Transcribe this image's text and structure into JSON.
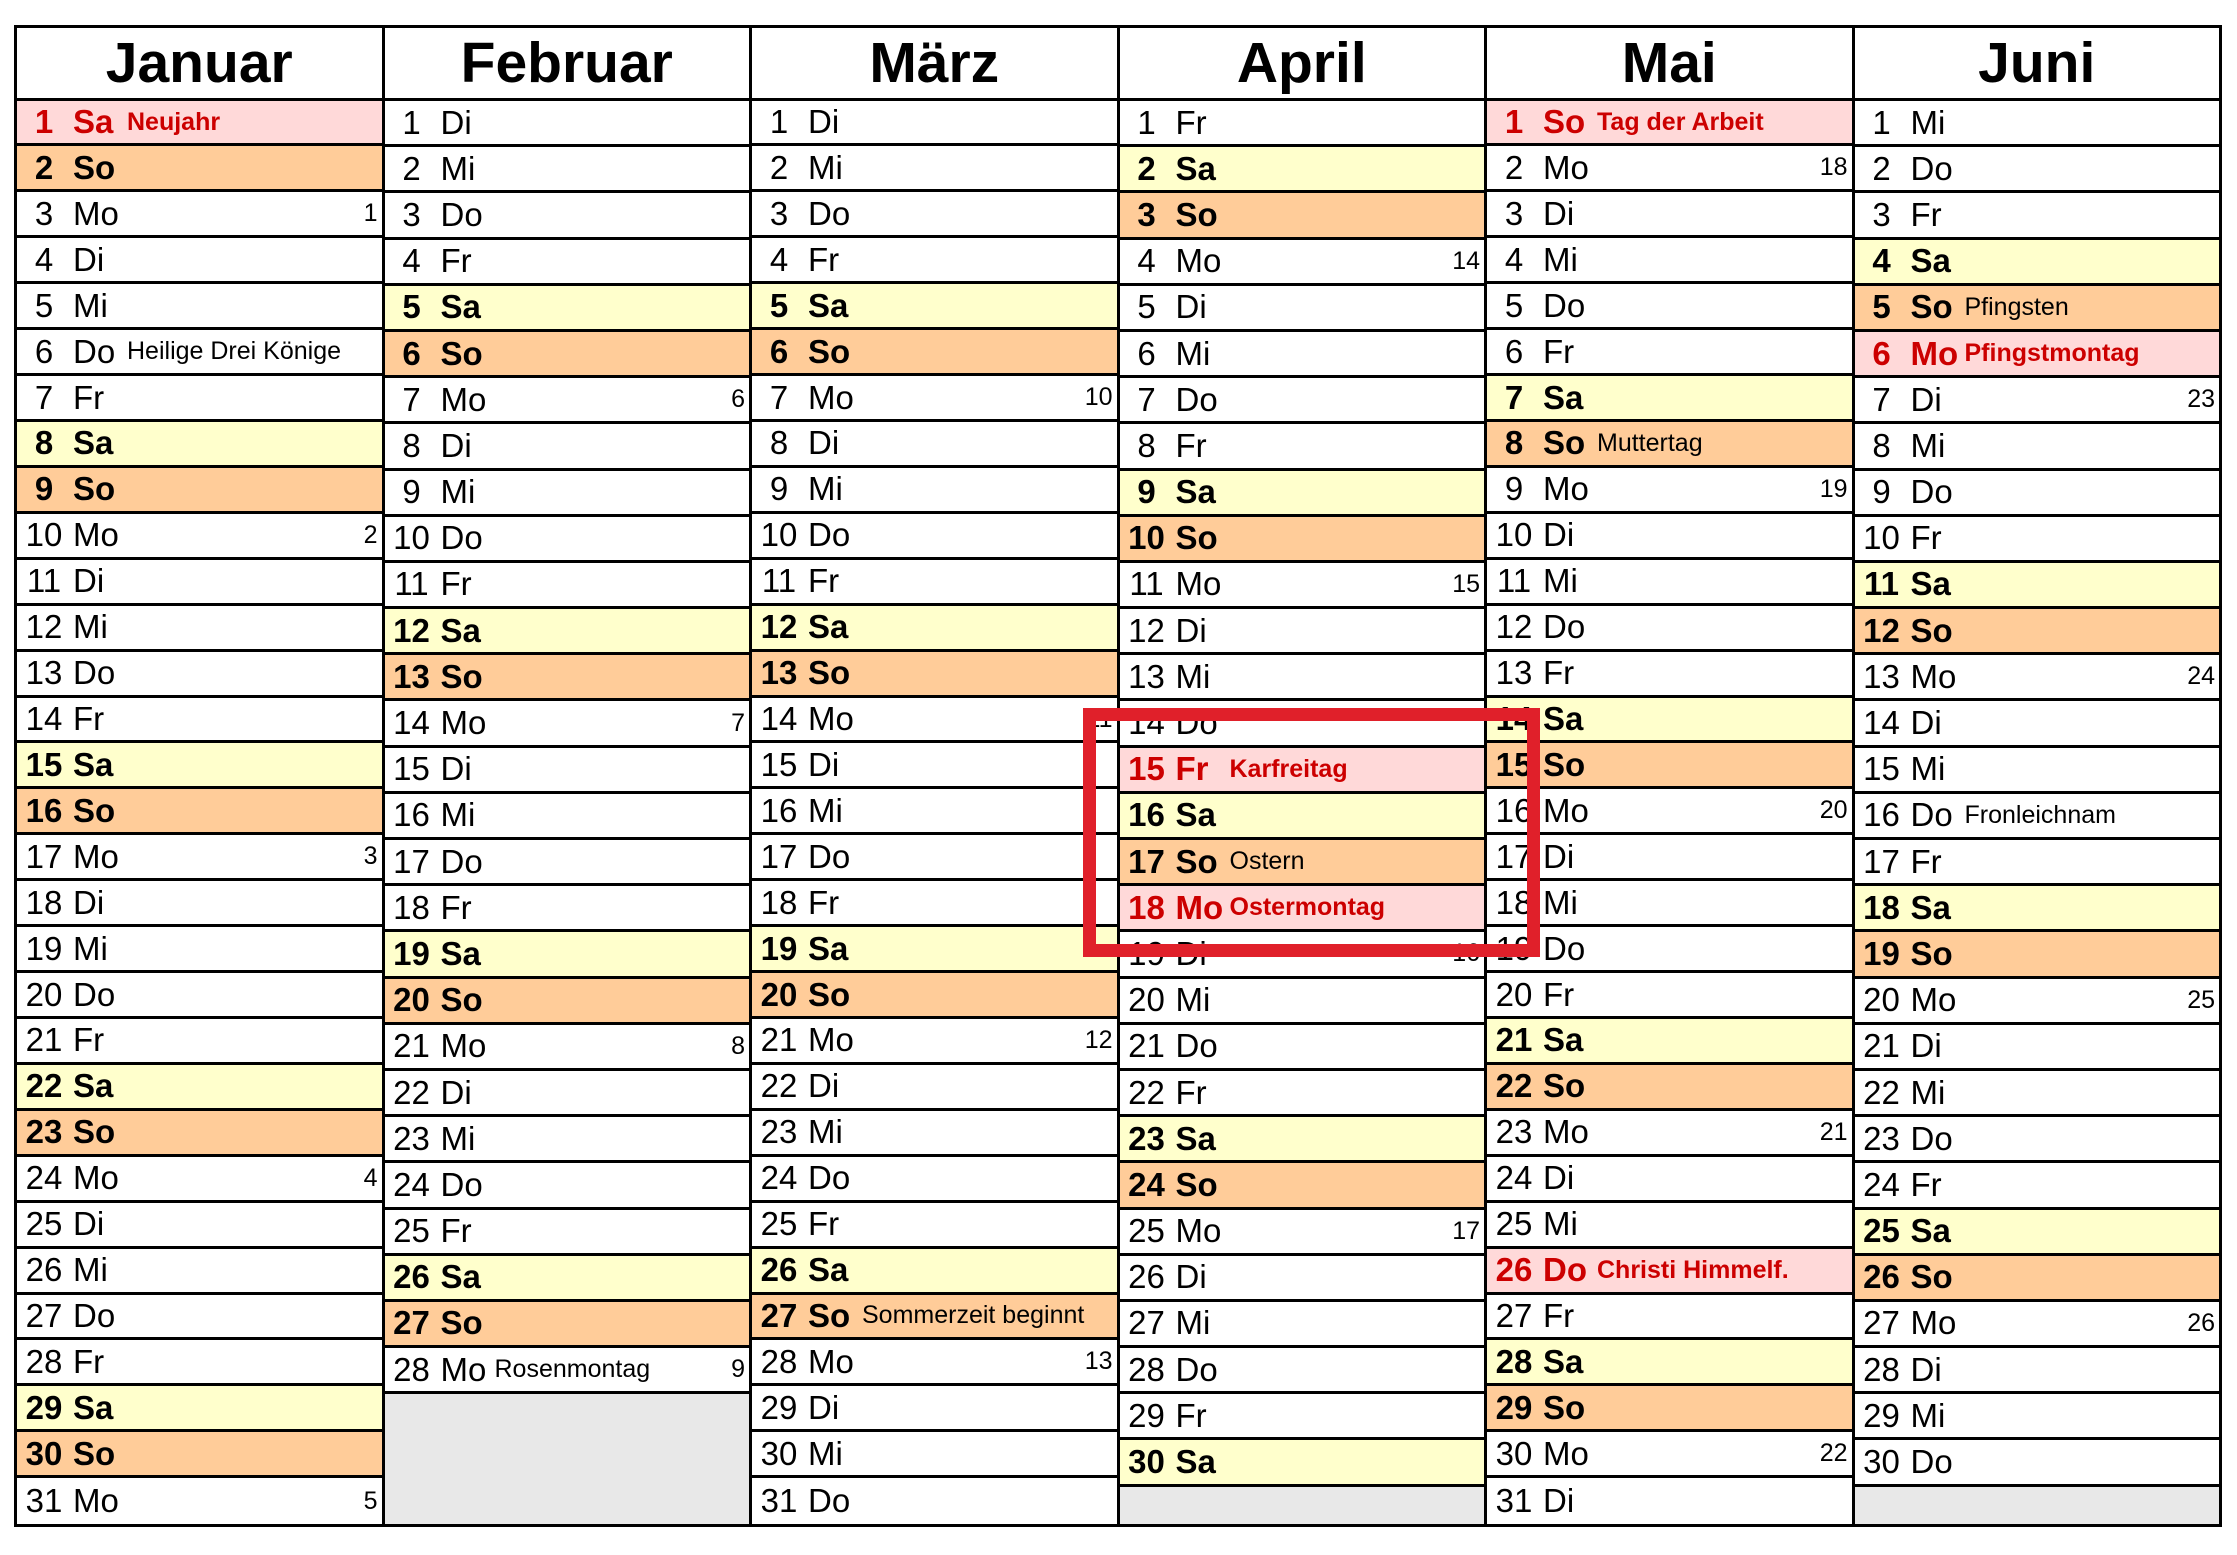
{
  "colors": {
    "saturday": "#ffffcc",
    "sunday": "#ffcc99",
    "holiday": "#ffd9d9",
    "holiday_text": "#cc0000",
    "empty": "#e8e8e8",
    "highlight_box": "#e0202a"
  },
  "months": [
    {
      "name": "Januar",
      "days": [
        [
          "1",
          "Sa",
          "Neujahr",
          "",
          true
        ],
        [
          "2",
          "So",
          "",
          "",
          false
        ],
        [
          "3",
          "Mo",
          "",
          "1",
          false
        ],
        [
          "4",
          "Di",
          "",
          "",
          false
        ],
        [
          "5",
          "Mi",
          "",
          "",
          false
        ],
        [
          "6",
          "Do",
          "Heilige Drei Könige",
          "",
          false
        ],
        [
          "7",
          "Fr",
          "",
          "",
          false
        ],
        [
          "8",
          "Sa",
          "",
          "",
          false
        ],
        [
          "9",
          "So",
          "",
          "",
          false
        ],
        [
          "10",
          "Mo",
          "",
          "2",
          false
        ],
        [
          "11",
          "Di",
          "",
          "",
          false
        ],
        [
          "12",
          "Mi",
          "",
          "",
          false
        ],
        [
          "13",
          "Do",
          "",
          "",
          false
        ],
        [
          "14",
          "Fr",
          "",
          "",
          false
        ],
        [
          "15",
          "Sa",
          "",
          "",
          false
        ],
        [
          "16",
          "So",
          "",
          "",
          false
        ],
        [
          "17",
          "Mo",
          "",
          "3",
          false
        ],
        [
          "18",
          "Di",
          "",
          "",
          false
        ],
        [
          "19",
          "Mi",
          "",
          "",
          false
        ],
        [
          "20",
          "Do",
          "",
          "",
          false
        ],
        [
          "21",
          "Fr",
          "",
          "",
          false
        ],
        [
          "22",
          "Sa",
          "",
          "",
          false
        ],
        [
          "23",
          "So",
          "",
          "",
          false
        ],
        [
          "24",
          "Mo",
          "",
          "4",
          false
        ],
        [
          "25",
          "Di",
          "",
          "",
          false
        ],
        [
          "26",
          "Mi",
          "",
          "",
          false
        ],
        [
          "27",
          "Do",
          "",
          "",
          false
        ],
        [
          "28",
          "Fr",
          "",
          "",
          false
        ],
        [
          "29",
          "Sa",
          "",
          "",
          false
        ],
        [
          "30",
          "So",
          "",
          "",
          false
        ],
        [
          "31",
          "Mo",
          "",
          "5",
          false
        ]
      ]
    },
    {
      "name": "Februar",
      "days": [
        [
          "1",
          "Di",
          "",
          "",
          false
        ],
        [
          "2",
          "Mi",
          "",
          "",
          false
        ],
        [
          "3",
          "Do",
          "",
          "",
          false
        ],
        [
          "4",
          "Fr",
          "",
          "",
          false
        ],
        [
          "5",
          "Sa",
          "",
          "",
          false
        ],
        [
          "6",
          "So",
          "",
          "",
          false
        ],
        [
          "7",
          "Mo",
          "",
          "6",
          false
        ],
        [
          "8",
          "Di",
          "",
          "",
          false
        ],
        [
          "9",
          "Mi",
          "",
          "",
          false
        ],
        [
          "10",
          "Do",
          "",
          "",
          false
        ],
        [
          "11",
          "Fr",
          "",
          "",
          false
        ],
        [
          "12",
          "Sa",
          "",
          "",
          false
        ],
        [
          "13",
          "So",
          "",
          "",
          false
        ],
        [
          "14",
          "Mo",
          "",
          "7",
          false
        ],
        [
          "15",
          "Di",
          "",
          "",
          false
        ],
        [
          "16",
          "Mi",
          "",
          "",
          false
        ],
        [
          "17",
          "Do",
          "",
          "",
          false
        ],
        [
          "18",
          "Fr",
          "",
          "",
          false
        ],
        [
          "19",
          "Sa",
          "",
          "",
          false
        ],
        [
          "20",
          "So",
          "",
          "",
          false
        ],
        [
          "21",
          "Mo",
          "",
          "8",
          false
        ],
        [
          "22",
          "Di",
          "",
          "",
          false
        ],
        [
          "23",
          "Mi",
          "",
          "",
          false
        ],
        [
          "24",
          "Do",
          "",
          "",
          false
        ],
        [
          "25",
          "Fr",
          "",
          "",
          false
        ],
        [
          "26",
          "Sa",
          "",
          "",
          false
        ],
        [
          "27",
          "So",
          "",
          "",
          false
        ],
        [
          "28",
          "Mo",
          "Rosenmontag",
          "9",
          false
        ]
      ]
    },
    {
      "name": "März",
      "days": [
        [
          "1",
          "Di",
          "",
          "",
          false
        ],
        [
          "2",
          "Mi",
          "",
          "",
          false
        ],
        [
          "3",
          "Do",
          "",
          "",
          false
        ],
        [
          "4",
          "Fr",
          "",
          "",
          false
        ],
        [
          "5",
          "Sa",
          "",
          "",
          false
        ],
        [
          "6",
          "So",
          "",
          "",
          false
        ],
        [
          "7",
          "Mo",
          "",
          "10",
          false
        ],
        [
          "8",
          "Di",
          "",
          "",
          false
        ],
        [
          "9",
          "Mi",
          "",
          "",
          false
        ],
        [
          "10",
          "Do",
          "",
          "",
          false
        ],
        [
          "11",
          "Fr",
          "",
          "",
          false
        ],
        [
          "12",
          "Sa",
          "",
          "",
          false
        ],
        [
          "13",
          "So",
          "",
          "",
          false
        ],
        [
          "14",
          "Mo",
          "",
          "11",
          false
        ],
        [
          "15",
          "Di",
          "",
          "",
          false
        ],
        [
          "16",
          "Mi",
          "",
          "",
          false
        ],
        [
          "17",
          "Do",
          "",
          "",
          false
        ],
        [
          "18",
          "Fr",
          "",
          "",
          false
        ],
        [
          "19",
          "Sa",
          "",
          "",
          false
        ],
        [
          "20",
          "So",
          "",
          "",
          false
        ],
        [
          "21",
          "Mo",
          "",
          "12",
          false
        ],
        [
          "22",
          "Di",
          "",
          "",
          false
        ],
        [
          "23",
          "Mi",
          "",
          "",
          false
        ],
        [
          "24",
          "Do",
          "",
          "",
          false
        ],
        [
          "25",
          "Fr",
          "",
          "",
          false
        ],
        [
          "26",
          "Sa",
          "",
          "",
          false
        ],
        [
          "27",
          "So",
          "Sommerzeit beginnt",
          "",
          false
        ],
        [
          "28",
          "Mo",
          "",
          "13",
          false
        ],
        [
          "29",
          "Di",
          "",
          "",
          false
        ],
        [
          "30",
          "Mi",
          "",
          "",
          false
        ],
        [
          "31",
          "Do",
          "",
          "",
          false
        ]
      ]
    },
    {
      "name": "April",
      "days": [
        [
          "1",
          "Fr",
          "",
          "",
          false
        ],
        [
          "2",
          "Sa",
          "",
          "",
          false
        ],
        [
          "3",
          "So",
          "",
          "",
          false
        ],
        [
          "4",
          "Mo",
          "",
          "14",
          false
        ],
        [
          "5",
          "Di",
          "",
          "",
          false
        ],
        [
          "6",
          "Mi",
          "",
          "",
          false
        ],
        [
          "7",
          "Do",
          "",
          "",
          false
        ],
        [
          "8",
          "Fr",
          "",
          "",
          false
        ],
        [
          "9",
          "Sa",
          "",
          "",
          false
        ],
        [
          "10",
          "So",
          "",
          "",
          false
        ],
        [
          "11",
          "Mo",
          "",
          "15",
          false
        ],
        [
          "12",
          "Di",
          "",
          "",
          false
        ],
        [
          "13",
          "Mi",
          "",
          "",
          false
        ],
        [
          "14",
          "Do",
          "",
          "",
          false
        ],
        [
          "15",
          "Fr",
          "Karfreitag",
          "",
          true
        ],
        [
          "16",
          "Sa",
          "",
          "",
          false
        ],
        [
          "17",
          "So",
          "Ostern",
          "",
          false
        ],
        [
          "18",
          "Mo",
          "Ostermontag",
          "",
          true
        ],
        [
          "19",
          "Di",
          "",
          "16",
          false
        ],
        [
          "20",
          "Mi",
          "",
          "",
          false
        ],
        [
          "21",
          "Do",
          "",
          "",
          false
        ],
        [
          "22",
          "Fr",
          "",
          "",
          false
        ],
        [
          "23",
          "Sa",
          "",
          "",
          false
        ],
        [
          "24",
          "So",
          "",
          "",
          false
        ],
        [
          "25",
          "Mo",
          "",
          "17",
          false
        ],
        [
          "26",
          "Di",
          "",
          "",
          false
        ],
        [
          "27",
          "Mi",
          "",
          "",
          false
        ],
        [
          "28",
          "Do",
          "",
          "",
          false
        ],
        [
          "29",
          "Fr",
          "",
          "",
          false
        ],
        [
          "30",
          "Sa",
          "",
          "",
          false
        ]
      ]
    },
    {
      "name": "Mai",
      "days": [
        [
          "1",
          "So",
          "Tag der Arbeit",
          "",
          true
        ],
        [
          "2",
          "Mo",
          "",
          "18",
          false
        ],
        [
          "3",
          "Di",
          "",
          "",
          false
        ],
        [
          "4",
          "Mi",
          "",
          "",
          false
        ],
        [
          "5",
          "Do",
          "",
          "",
          false
        ],
        [
          "6",
          "Fr",
          "",
          "",
          false
        ],
        [
          "7",
          "Sa",
          "",
          "",
          false
        ],
        [
          "8",
          "So",
          "Muttertag",
          "",
          false
        ],
        [
          "9",
          "Mo",
          "",
          "19",
          false
        ],
        [
          "10",
          "Di",
          "",
          "",
          false
        ],
        [
          "11",
          "Mi",
          "",
          "",
          false
        ],
        [
          "12",
          "Do",
          "",
          "",
          false
        ],
        [
          "13",
          "Fr",
          "",
          "",
          false
        ],
        [
          "14",
          "Sa",
          "",
          "",
          false
        ],
        [
          "15",
          "So",
          "",
          "",
          false
        ],
        [
          "16",
          "Mo",
          "",
          "20",
          false
        ],
        [
          "17",
          "Di",
          "",
          "",
          false
        ],
        [
          "18",
          "Mi",
          "",
          "",
          false
        ],
        [
          "19",
          "Do",
          "",
          "",
          false
        ],
        [
          "20",
          "Fr",
          "",
          "",
          false
        ],
        [
          "21",
          "Sa",
          "",
          "",
          false
        ],
        [
          "22",
          "So",
          "",
          "",
          false
        ],
        [
          "23",
          "Mo",
          "",
          "21",
          false
        ],
        [
          "24",
          "Di",
          "",
          "",
          false
        ],
        [
          "25",
          "Mi",
          "",
          "",
          false
        ],
        [
          "26",
          "Do",
          "Christi Himmelf.",
          "",
          true
        ],
        [
          "27",
          "Fr",
          "",
          "",
          false
        ],
        [
          "28",
          "Sa",
          "",
          "",
          false
        ],
        [
          "29",
          "So",
          "",
          "",
          false
        ],
        [
          "30",
          "Mo",
          "",
          "22",
          false
        ],
        [
          "31",
          "Di",
          "",
          "",
          false
        ]
      ]
    },
    {
      "name": "Juni",
      "days": [
        [
          "1",
          "Mi",
          "",
          "",
          false
        ],
        [
          "2",
          "Do",
          "",
          "",
          false
        ],
        [
          "3",
          "Fr",
          "",
          "",
          false
        ],
        [
          "4",
          "Sa",
          "",
          "",
          false
        ],
        [
          "5",
          "So",
          "Pfingsten",
          "",
          false
        ],
        [
          "6",
          "Mo",
          "Pfingstmontag",
          "",
          true
        ],
        [
          "7",
          "Di",
          "",
          "23",
          false
        ],
        [
          "8",
          "Mi",
          "",
          "",
          false
        ],
        [
          "9",
          "Do",
          "",
          "",
          false
        ],
        [
          "10",
          "Fr",
          "",
          "",
          false
        ],
        [
          "11",
          "Sa",
          "",
          "",
          false
        ],
        [
          "12",
          "So",
          "",
          "",
          false
        ],
        [
          "13",
          "Mo",
          "",
          "24",
          false
        ],
        [
          "14",
          "Di",
          "",
          "",
          false
        ],
        [
          "15",
          "Mi",
          "",
          "",
          false
        ],
        [
          "16",
          "Do",
          "Fronleichnam",
          "",
          false
        ],
        [
          "17",
          "Fr",
          "",
          "",
          false
        ],
        [
          "18",
          "Sa",
          "",
          "",
          false
        ],
        [
          "19",
          "So",
          "",
          "",
          false
        ],
        [
          "20",
          "Mo",
          "",
          "25",
          false
        ],
        [
          "21",
          "Di",
          "",
          "",
          false
        ],
        [
          "22",
          "Mi",
          "",
          "",
          false
        ],
        [
          "23",
          "Do",
          "",
          "",
          false
        ],
        [
          "24",
          "Fr",
          "",
          "",
          false
        ],
        [
          "25",
          "Sa",
          "",
          "",
          false
        ],
        [
          "26",
          "So",
          "",
          "",
          false
        ],
        [
          "27",
          "Mo",
          "",
          "26",
          false
        ],
        [
          "28",
          "Di",
          "",
          "",
          false
        ],
        [
          "29",
          "Mi",
          "",
          "",
          false
        ],
        [
          "30",
          "Do",
          "",
          "",
          false
        ]
      ]
    }
  ]
}
